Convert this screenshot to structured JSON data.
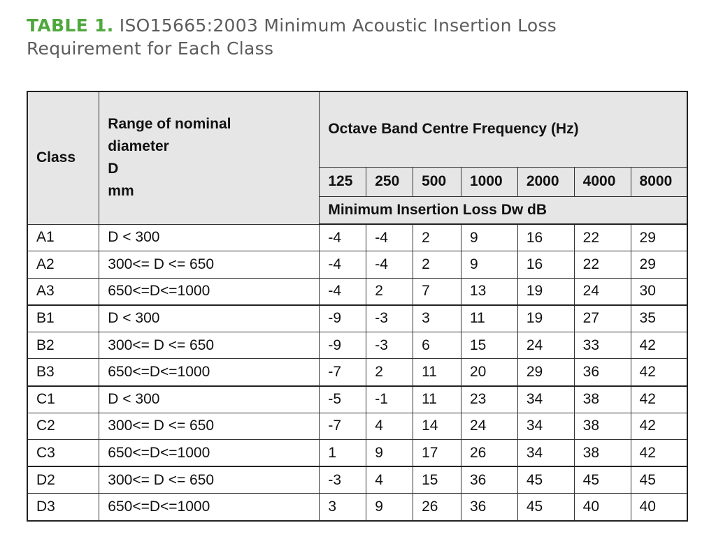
{
  "header": {
    "label": "TABLE 1.",
    "title": "ISO15665:2003 Minimum Acoustic Insertion Loss Requirement for Each Class"
  },
  "table": {
    "class_header": "Class",
    "range_header": [
      "Range of nominal",
      "diameter",
      "D",
      "mm"
    ],
    "frequency_header": "Octave Band Centre Frequency (Hz)",
    "frequencies": [
      125,
      250,
      500,
      1000,
      2000,
      4000,
      8000
    ],
    "loss_header": "Minimum Insertion Loss Dw dB",
    "groups": [
      {
        "rows": [
          {
            "class": "A1",
            "range": "D < 300",
            "values": [
              -4,
              -4,
              2,
              9,
              16,
              22,
              29
            ]
          },
          {
            "class": "A2",
            "range": "300<= D <= 650",
            "values": [
              -4,
              -4,
              2,
              9,
              16,
              22,
              29
            ]
          },
          {
            "class": "A3",
            "range": "650<=D<=1000",
            "values": [
              -4,
              2,
              7,
              13,
              19,
              24,
              30
            ]
          }
        ]
      },
      {
        "rows": [
          {
            "class": "B1",
            "range": "D < 300",
            "values": [
              -9,
              -3,
              3,
              11,
              19,
              27,
              35
            ]
          },
          {
            "class": "B2",
            "range": "300<= D <= 650",
            "values": [
              -9,
              -3,
              6,
              15,
              24,
              33,
              42
            ]
          },
          {
            "class": "B3",
            "range": "650<=D<=1000",
            "values": [
              -7,
              2,
              11,
              20,
              29,
              36,
              42
            ]
          }
        ]
      },
      {
        "rows": [
          {
            "class": "C1",
            "range": "D < 300",
            "values": [
              -5,
              -1,
              11,
              23,
              34,
              38,
              42
            ]
          },
          {
            "class": "C2",
            "range": "300<= D <= 650",
            "values": [
              -7,
              4,
              14,
              24,
              34,
              38,
              42
            ]
          },
          {
            "class": "C3",
            "range": "650<=D<=1000",
            "values": [
              1,
              9,
              17,
              26,
              34,
              38,
              42
            ]
          }
        ]
      },
      {
        "rows": [
          {
            "class": "D2",
            "range": "300<= D <= 650",
            "values": [
              -3,
              4,
              15,
              36,
              45,
              45,
              45
            ]
          },
          {
            "class": "D3",
            "range": "650<=D<=1000",
            "values": [
              3,
              9,
              26,
              36,
              45,
              40,
              40
            ]
          }
        ]
      }
    ]
  }
}
